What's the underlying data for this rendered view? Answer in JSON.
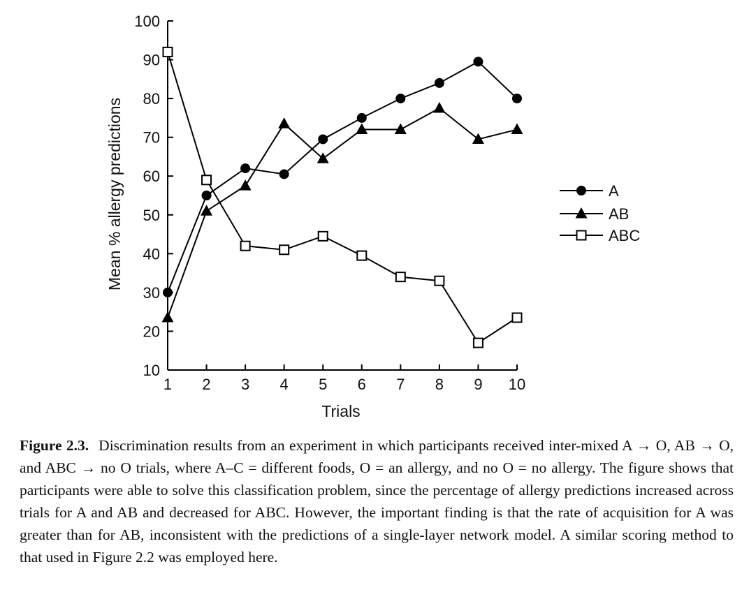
{
  "chart_data": {
    "type": "line",
    "xlabel": "Trials",
    "ylabel": "Mean % allergy predictions",
    "x": [
      1,
      2,
      3,
      4,
      5,
      6,
      7,
      8,
      9,
      10
    ],
    "xticks": [
      "1",
      "2",
      "3",
      "4",
      "5",
      "6",
      "7",
      "8",
      "9",
      "10"
    ],
    "yticks": [
      "10",
      "20",
      "30",
      "40",
      "50",
      "60",
      "70",
      "80",
      "90",
      "100"
    ],
    "ylim": [
      10,
      100
    ],
    "xlim": [
      1,
      10
    ],
    "grid": false,
    "legend_position": "right",
    "series": [
      {
        "name": "A",
        "marker": "filled-circle",
        "color": "#000000",
        "values": [
          30,
          55,
          62,
          60.5,
          69.5,
          75,
          80,
          84,
          89.5,
          80
        ]
      },
      {
        "name": "AB",
        "marker": "filled-triangle",
        "color": "#000000",
        "values": [
          23.5,
          51,
          57.5,
          73.5,
          64.5,
          72,
          72,
          77.5,
          69.5,
          72
        ]
      },
      {
        "name": "ABC",
        "marker": "open-square",
        "color": "#000000",
        "values": [
          92,
          59,
          42,
          41,
          44.5,
          39.5,
          34,
          33,
          17,
          23.5
        ]
      }
    ]
  },
  "caption": {
    "label": "Figure 2.3.",
    "text": "Discrimination results from an experiment in which participants received inter-mixed A → O, AB → O, and ABC → no O trials, where A–C = different foods, O = an allergy, and no O = no allergy. The figure shows that participants were able to solve this classification problem, since the percentage of allergy predictions increased across trials for A and AB and decreased for ABC. However, the important finding is that the rate of acquisition for A was greater than for AB, inconsistent with the predictions of a single-layer network model. A similar scoring method to that used in Figure 2.2 was employed here."
  }
}
